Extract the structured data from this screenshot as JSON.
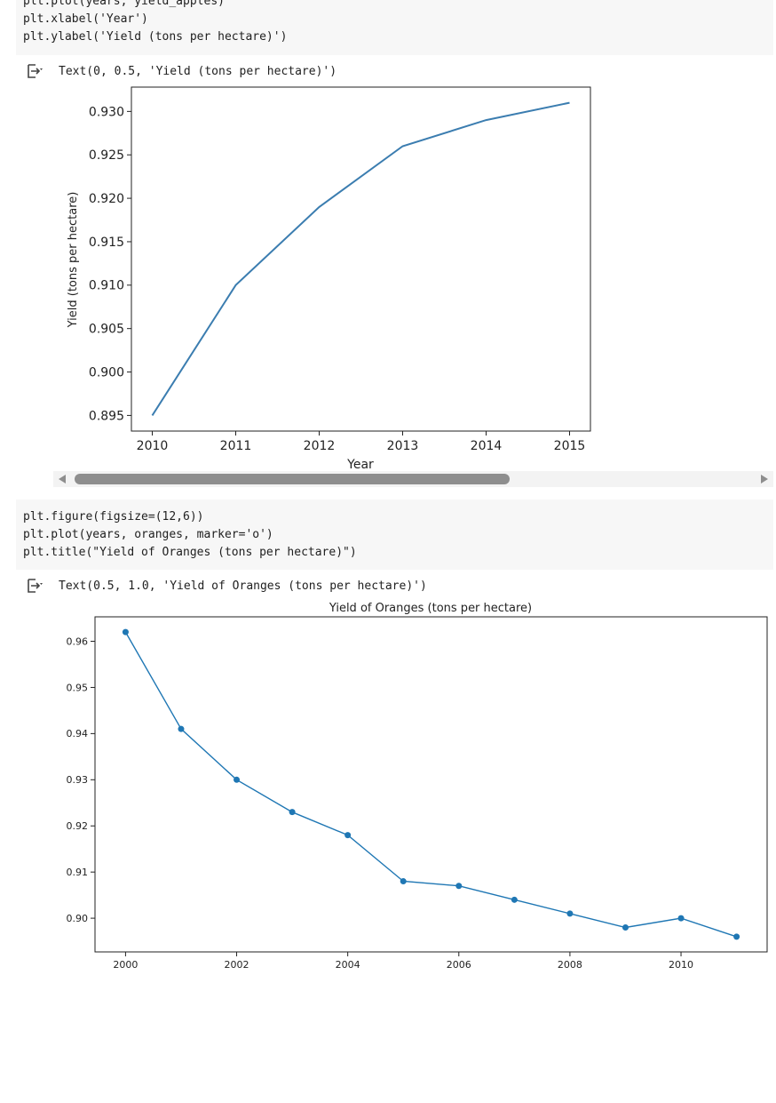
{
  "cell1": {
    "lines": [
      "plt.plot(years, yield_apples)",
      "plt.xlabel('Year')",
      "plt.ylabel('Yield (tons per hectare)')"
    ],
    "output_text": "Text(0, 0.5, 'Yield (tons per hectare)')"
  },
  "cell2": {
    "lines": [
      "plt.figure(figsize=(12,6))",
      "plt.plot(years, oranges, marker='o')",
      "plt.title(\"Yield of Oranges (tons per hectare)\")"
    ],
    "output_text": "Text(0.5, 1.0, 'Yield of Oranges (tons per hectare)')"
  },
  "icons": {
    "output": "output-arrow-icon",
    "scroll_left": "scroll-left-arrow-icon",
    "scroll_right": "scroll-right-arrow-icon"
  },
  "colors": {
    "line": "#3b7db0",
    "marker": "#1f77b4",
    "code_bg": "#f7f7f7"
  },
  "chart_data": [
    {
      "type": "line",
      "title": "",
      "xlabel": "Year",
      "ylabel": "Yield (tons per hectare)",
      "x": [
        2010,
        2011,
        2012,
        2013,
        2014,
        2015
      ],
      "series": [
        {
          "values": [
            0.895,
            0.91,
            0.919,
            0.926,
            0.929,
            0.931
          ]
        }
      ],
      "xticks": [
        "2010",
        "2011",
        "2012",
        "2013",
        "2014",
        "2015"
      ],
      "yticks": [
        "0.895",
        "0.900",
        "0.905",
        "0.910",
        "0.915",
        "0.920",
        "0.925",
        "0.930"
      ],
      "xlim": [
        2009.75,
        2015.25
      ],
      "ylim": [
        0.8932,
        0.9328
      ],
      "grid": false
    },
    {
      "type": "line",
      "title": "Yield of Oranges (tons per hectare)",
      "xlabel": "",
      "ylabel": "",
      "marker": "o",
      "x": [
        2000,
        2001,
        2002,
        2003,
        2004,
        2005,
        2006,
        2007,
        2008,
        2009,
        2010,
        2011
      ],
      "series": [
        {
          "values": [
            0.962,
            0.941,
            0.93,
            0.923,
            0.918,
            0.908,
            0.907,
            0.904,
            0.901,
            0.898,
            0.9,
            0.896
          ]
        }
      ],
      "xticks": [
        "2000",
        "2002",
        "2004",
        "2006",
        "2008",
        "2010"
      ],
      "yticks": [
        "0.90",
        "0.91",
        "0.92",
        "0.93",
        "0.94",
        "0.95",
        "0.96"
      ],
      "xlim": [
        1999.45,
        2011.55
      ],
      "ylim": [
        0.8927,
        0.9653
      ],
      "grid": false
    }
  ]
}
